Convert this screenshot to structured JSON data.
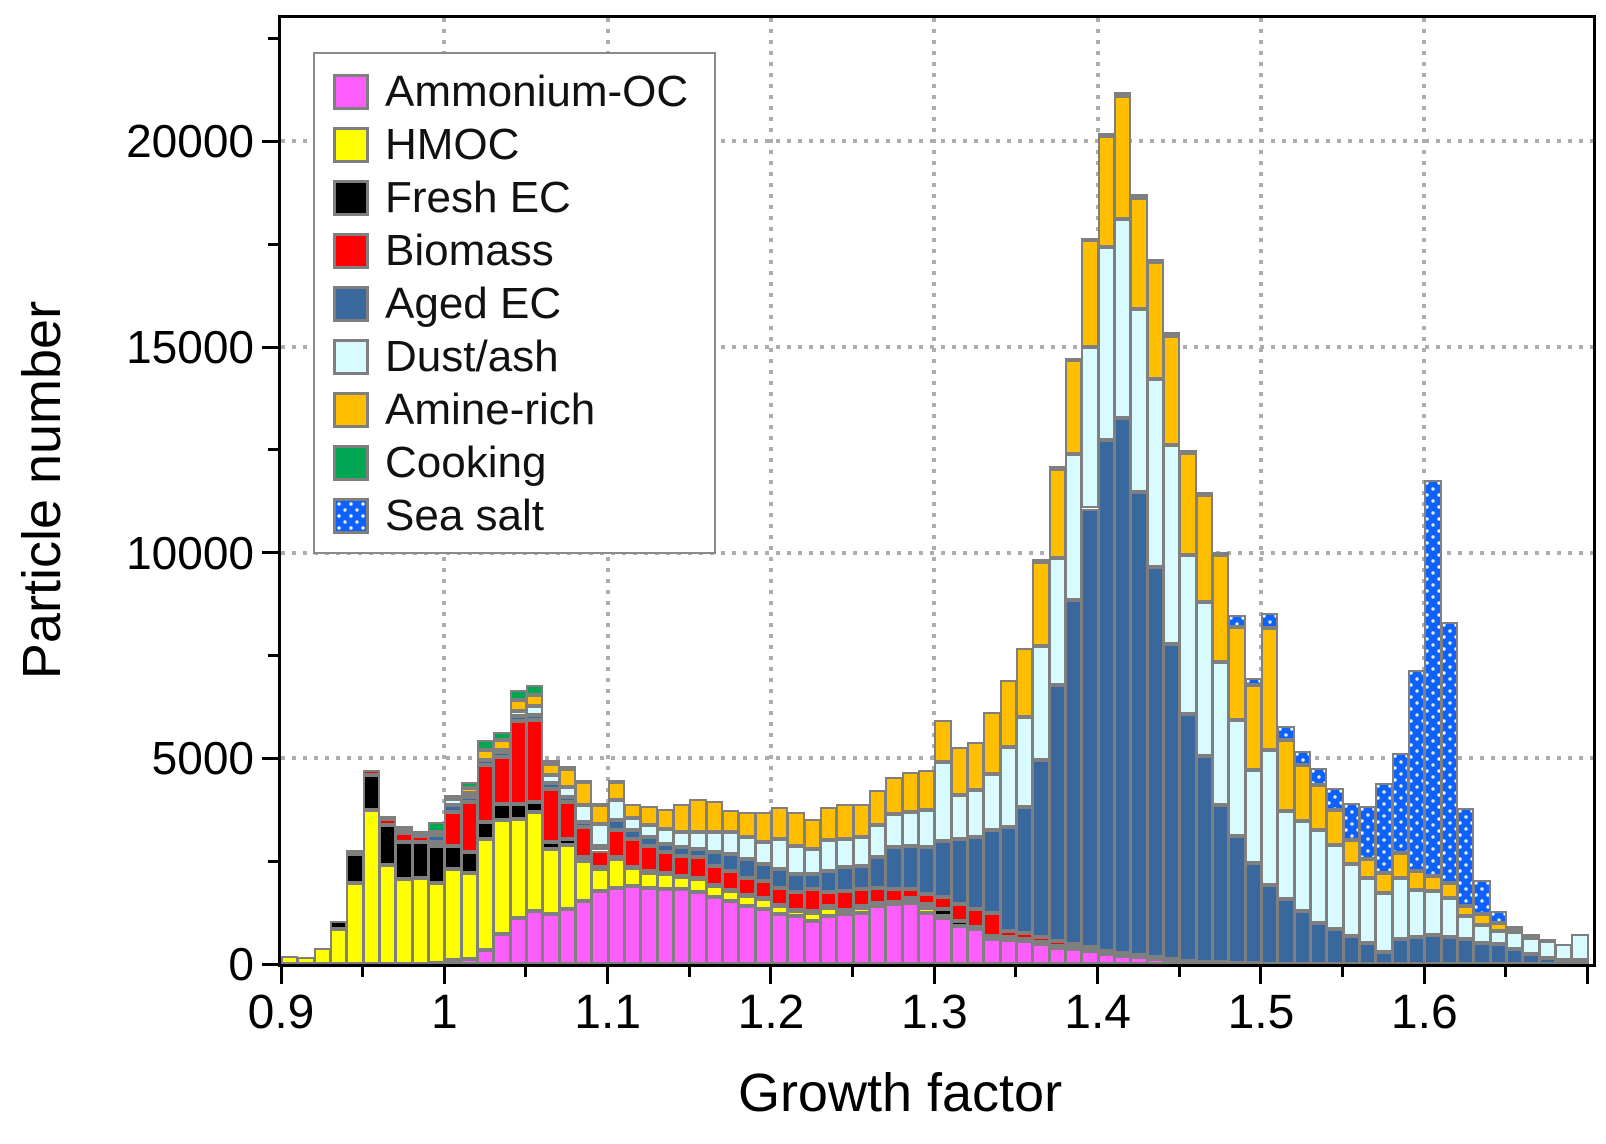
{
  "figure": {
    "xlabel": "Growth factor",
    "ylabel": "Particle number",
    "background": "#FFFFFF",
    "axis_color": "#000000",
    "bar_border_color": "#7F7F7F",
    "grid_color": "#ADADAD"
  },
  "chart_data": {
    "type": "bar",
    "subtype": "stacked-histogram",
    "xlabel": "Growth factor",
    "ylabel": "Particle number",
    "x_start": 0.9,
    "x_step": 0.01,
    "bins": 80,
    "xlim": [
      0.9,
      1.7
    ],
    "ylim": [
      0,
      23000
    ],
    "xticks": [
      0.9,
      1.0,
      1.1,
      1.2,
      1.3,
      1.4,
      1.5,
      1.6
    ],
    "xtick_labels": [
      "0.9",
      "1",
      "1.1",
      "1.2",
      "1.3",
      "1.4",
      "1.5",
      "1.6"
    ],
    "xminor_step": 0.05,
    "yticks": [
      0,
      5000,
      10000,
      15000,
      20000
    ],
    "ytick_labels": [
      "0",
      "5000",
      "10000",
      "15000",
      "20000"
    ],
    "yminor_step": 2500,
    "grid": "dotted at major ticks",
    "legend_position": "upper-left",
    "series": [
      {
        "name": "Ammonium-OC",
        "key": "ammonium_oc",
        "color": "#FF5EFF",
        "values": [
          0,
          0,
          0,
          0,
          0,
          0,
          0,
          0,
          0,
          30,
          100,
          120,
          350,
          720,
          1125,
          1290,
          1210,
          1330,
          1530,
          1780,
          1860,
          1900,
          1860,
          1820,
          1820,
          1740,
          1620,
          1540,
          1415,
          1330,
          1210,
          1170,
          1045,
          1170,
          1210,
          1250,
          1415,
          1455,
          1495,
          1250,
          1130,
          925,
          845,
          600,
          595,
          560,
          475,
          395,
          355,
          315,
          235,
          200,
          160,
          120,
          90,
          60,
          40,
          30,
          20,
          15,
          10,
          0,
          0,
          0,
          0,
          0,
          0,
          0,
          0,
          0,
          0,
          0,
          0,
          0,
          0,
          0,
          0,
          0,
          0,
          0
        ]
      },
      {
        "name": "HMOC",
        "key": "hmoc",
        "color": "#FFFF00",
        "values": [
          200,
          160,
          400,
          840,
          1980,
          3740,
          2400,
          2060,
          2080,
          1940,
          2210,
          2105,
          2690,
          2770,
          2405,
          2405,
          1590,
          1560,
          980,
          530,
          690,
          425,
          365,
          365,
          285,
          320,
          280,
          240,
          240,
          245,
          205,
          120,
          205,
          200,
          80,
          120,
          40,
          30,
          80,
          120,
          40,
          0,
          0,
          0,
          30,
          20,
          30,
          20,
          15,
          10,
          0,
          0,
          0,
          0,
          0,
          0,
          0,
          0,
          0,
          0,
          0,
          0,
          0,
          0,
          0,
          0,
          0,
          0,
          0,
          0,
          0,
          0,
          0,
          0,
          0,
          0,
          0,
          0,
          0,
          0
        ]
      },
      {
        "name": "Fresh EC",
        "key": "fresh_ec",
        "color": "#000000",
        "values": [
          0,
          0,
          0,
          210,
          700,
          860,
          975,
          900,
          895,
          900,
          570,
          490,
          410,
          410,
          370,
          245,
          160,
          150,
          80,
          50,
          50,
          30,
          30,
          30,
          30,
          30,
          30,
          30,
          30,
          30,
          30,
          30,
          40,
          30,
          30,
          30,
          30,
          30,
          40,
          85,
          160,
          110,
          50,
          80,
          40,
          30,
          25,
          25,
          25,
          20,
          20,
          15,
          15,
          15,
          15,
          10,
          10,
          10,
          5,
          0,
          0,
          0,
          0,
          0,
          0,
          0,
          0,
          0,
          0,
          0,
          0,
          0,
          0,
          0,
          0,
          0,
          0,
          0,
          0,
          0
        ]
      },
      {
        "name": "Biomass",
        "key": "biomass",
        "color": "#FF0000",
        "values": [
          0,
          0,
          0,
          0,
          90,
          120,
          150,
          220,
          140,
          100,
          815,
          1225,
          1390,
          1140,
          2000,
          2000,
          1300,
          900,
          740,
          400,
          650,
          685,
          625,
          500,
          500,
          505,
          460,
          460,
          415,
          420,
          415,
          420,
          530,
          340,
          460,
          420,
          375,
          310,
          210,
          245,
          290,
          420,
          435,
          570,
          130,
          140,
          120,
          110,
          90,
          70,
          60,
          50,
          40,
          25,
          15,
          10,
          0,
          0,
          0,
          0,
          0,
          0,
          0,
          0,
          0,
          0,
          0,
          0,
          0,
          0,
          0,
          0,
          0,
          0,
          0,
          0,
          0,
          0,
          0,
          0
        ]
      },
      {
        "name": "Aged EC",
        "key": "aged_ec",
        "color": "#38689E",
        "values": [
          0,
          0,
          0,
          0,
          0,
          0,
          80,
          110,
          80,
          160,
          165,
          120,
          120,
          120,
          120,
          105,
          130,
          120,
          120,
          120,
          240,
          230,
          205,
          205,
          205,
          205,
          325,
          405,
          450,
          405,
          450,
          445,
          365,
          530,
          570,
          570,
          735,
          1015,
          1055,
          1140,
          1380,
          1595,
          1770,
          2000,
          2535,
          3070,
          4310,
          6245,
          8365,
          10660,
          12420,
          13000,
          11265,
          9500,
          7655,
          5990,
          5000,
          3835,
          3080,
          2445,
          1900,
          1570,
          1285,
          1000,
          840,
          680,
          500,
          300,
          600,
          650,
          700,
          650,
          600,
          520,
          475,
          375,
          250,
          150,
          100,
          100
        ]
      },
      {
        "name": "Dust/ash",
        "key": "dust_ash",
        "color": "#D8FBFF",
        "values": [
          0,
          0,
          0,
          0,
          0,
          0,
          0,
          60,
          40,
          80,
          160,
          100,
          0,
          40,
          120,
          220,
          200,
          250,
          410,
          530,
          490,
          280,
          285,
          370,
          365,
          405,
          505,
          530,
          535,
          530,
          730,
          695,
          615,
          735,
          695,
          695,
          775,
          815,
          815,
          895,
          1910,
          1050,
          1120,
          1380,
          1950,
          2190,
          2760,
          3065,
          3560,
          3925,
          4695,
          4850,
          4450,
          4570,
          4840,
          3880,
          3760,
          3480,
          2830,
          2265,
          3300,
          2145,
          2185,
          2270,
          2065,
          1740,
          1600,
          1430,
          1500,
          1150,
          1070,
          960,
          565,
          440,
          325,
          400,
          390,
          420,
          375,
          620
        ]
      },
      {
        "name": "Amine-rich",
        "key": "amine_rich",
        "color": "#FFBE00",
        "values": [
          0,
          0,
          0,
          0,
          0,
          0,
          0,
          0,
          0,
          0,
          0,
          120,
          245,
          250,
          290,
          285,
          285,
          430,
          570,
          450,
          450,
          350,
          465,
          490,
          695,
          800,
          735,
          530,
          610,
          735,
          780,
          815,
          735,
          815,
          855,
          815,
          855,
          895,
          980,
          980,
          1020,
          1180,
          1180,
          1500,
          1620,
          1665,
          2060,
          2185,
          2265,
          2600,
          2705,
          2985,
          2700,
          2830,
          2665,
          2480,
          2590,
          2580,
          2265,
          2060,
          2960,
          1735,
          1375,
          1090,
          850,
          605,
          450,
          485,
          600,
          460,
          365,
          370,
          245,
          245,
          200,
          100,
          50,
          30,
          0,
          0
        ]
      },
      {
        "name": "Cooking",
        "key": "cooking",
        "color": "#00A651",
        "values": [
          0,
          0,
          0,
          0,
          0,
          0,
          0,
          0,
          0,
          250,
          100,
          150,
          245,
          200,
          240,
          245,
          80,
          80,
          50,
          30,
          50,
          0,
          0,
          0,
          0,
          0,
          0,
          0,
          0,
          0,
          0,
          0,
          0,
          0,
          0,
          0,
          0,
          0,
          0,
          0,
          0,
          0,
          0,
          0,
          0,
          0,
          0,
          0,
          0,
          0,
          0,
          0,
          0,
          0,
          0,
          0,
          0,
          0,
          0,
          0,
          0,
          0,
          0,
          0,
          0,
          0,
          0,
          0,
          0,
          0,
          0,
          0,
          0,
          0,
          0,
          0,
          0,
          0,
          0,
          0
        ]
      },
      {
        "name": "Sea salt",
        "key": "sea_salt",
        "color": "#0D62FF",
        "pattern": "white-dots",
        "values": [
          0,
          0,
          0,
          0,
          0,
          0,
          0,
          0,
          0,
          0,
          0,
          0,
          0,
          0,
          0,
          0,
          0,
          0,
          0,
          0,
          0,
          0,
          0,
          0,
          0,
          0,
          0,
          0,
          0,
          0,
          0,
          0,
          0,
          0,
          0,
          0,
          0,
          0,
          0,
          0,
          0,
          0,
          0,
          0,
          0,
          0,
          70,
          60,
          65,
          60,
          80,
          100,
          90,
          80,
          80,
          70,
          80,
          80,
          285,
          165,
          370,
          325,
          325,
          405,
          525,
          890,
          1300,
          2185,
          2430,
          4890,
          9625,
          6345,
          2385,
          850,
          285,
          50,
          30,
          0,
          0,
          0
        ]
      }
    ]
  }
}
